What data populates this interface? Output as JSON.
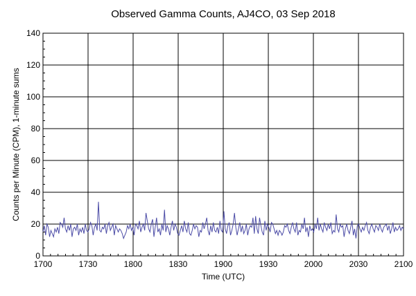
{
  "chart_data": {
    "type": "line",
    "title": "Observed Gamma Counts, AJ4CO, 03 Sep 2018",
    "xlabel": "Time (UTC)",
    "ylabel": "Counts per Minute (CPM), 1-minute sums",
    "x_tick_labels": [
      "1700",
      "1730",
      "1800",
      "1830",
      "1900",
      "1930",
      "2000",
      "2030",
      "2100"
    ],
    "y_ticks": [
      0,
      20,
      40,
      60,
      80,
      100,
      120,
      140
    ],
    "ylim": [
      0,
      140
    ],
    "xlim_minutes": [
      0,
      240
    ],
    "grid": true,
    "line_color": "#4b4ba6",
    "series": [
      {
        "values": [
          15,
          19,
          13,
          20,
          18,
          12,
          16,
          14,
          12,
          17,
          15,
          18,
          14,
          21,
          20,
          18,
          24,
          17,
          15,
          19,
          16,
          20,
          12,
          17,
          18,
          16,
          20,
          13,
          17,
          15,
          18,
          14,
          20,
          16,
          15,
          17,
          21,
          19,
          13,
          18,
          20,
          16,
          34,
          16,
          15,
          18,
          17,
          20,
          14,
          19,
          21,
          16,
          18,
          20,
          13,
          19,
          17,
          15,
          17,
          16,
          14,
          11,
          13,
          15,
          19,
          17,
          20,
          16,
          18,
          13,
          20,
          19,
          17,
          22,
          15,
          18,
          20,
          16,
          27,
          22,
          17,
          15,
          20,
          23,
          12,
          18,
          24,
          15,
          17,
          13,
          20,
          16,
          29,
          15,
          19,
          17,
          13,
          18,
          22,
          16,
          20,
          18,
          14,
          13,
          16,
          19,
          15,
          22,
          17,
          15,
          21,
          14,
          13,
          16,
          20,
          17,
          19,
          18,
          12,
          16,
          15,
          21,
          17,
          20,
          24,
          16,
          13,
          19,
          15,
          21,
          16,
          15,
          18,
          14,
          22,
          16,
          15,
          28,
          17,
          14,
          19,
          21,
          13,
          16,
          20,
          27,
          18,
          13,
          17,
          21,
          15,
          19,
          14,
          16,
          20,
          13,
          17,
          19,
          18,
          24,
          14,
          25,
          17,
          14,
          24,
          19,
          15,
          13,
          22,
          16,
          20,
          18,
          15,
          21,
          20,
          17,
          14,
          16,
          13,
          16,
          15,
          13,
          15,
          19,
          18,
          20,
          16,
          14,
          18,
          21,
          17,
          15,
          21,
          13,
          16,
          15,
          20,
          17,
          24,
          15,
          18,
          12,
          19,
          16,
          17,
          15,
          20,
          17,
          24,
          16,
          20,
          17,
          15,
          21,
          18,
          16,
          20,
          17,
          21,
          14,
          16,
          15,
          26,
          17,
          15,
          20,
          18,
          19,
          12,
          17,
          20,
          16,
          14,
          18,
          22,
          13,
          17,
          11,
          19,
          20,
          17,
          15,
          18,
          16,
          19,
          21,
          16,
          14,
          18,
          20,
          17,
          15,
          19,
          18,
          16,
          20,
          17,
          15,
          18,
          19,
          20,
          16,
          19,
          14,
          17,
          21,
          15,
          18,
          16,
          17,
          19,
          16,
          18,
          17
        ]
      }
    ]
  }
}
